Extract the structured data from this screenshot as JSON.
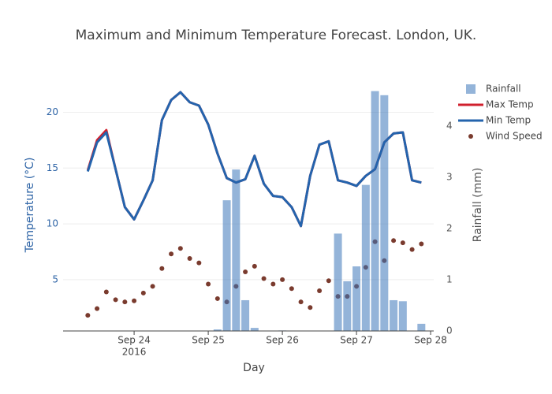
{
  "chart_data": {
    "type": "combo",
    "title": "Maximum and Minimum Temperature Forecast. London, UK.",
    "x_label": "Day",
    "y_label": "Temperature (°C)",
    "y2_label": "Rainfall (mm)",
    "x": [
      "2016-09-23 09:00",
      "2016-09-23 12:00",
      "2016-09-23 15:00",
      "2016-09-23 18:00",
      "2016-09-23 21:00",
      "2016-09-24 00:00",
      "2016-09-24 03:00",
      "2016-09-24 06:00",
      "2016-09-24 09:00",
      "2016-09-24 12:00",
      "2016-09-24 15:00",
      "2016-09-24 18:00",
      "2016-09-24 21:00",
      "2016-09-25 00:00",
      "2016-09-25 03:00",
      "2016-09-25 06:00",
      "2016-09-25 09:00",
      "2016-09-25 12:00",
      "2016-09-25 15:00",
      "2016-09-25 18:00",
      "2016-09-25 21:00",
      "2016-09-26 00:00",
      "2016-09-26 03:00",
      "2016-09-26 06:00",
      "2016-09-26 09:00",
      "2016-09-26 12:00",
      "2016-09-26 15:00",
      "2016-09-26 18:00",
      "2016-09-26 21:00",
      "2016-09-27 00:00",
      "2016-09-27 03:00",
      "2016-09-27 06:00",
      "2016-09-27 09:00",
      "2016-09-27 12:00",
      "2016-09-27 15:00",
      "2016-09-27 18:00",
      "2016-09-27 21:00"
    ],
    "series": [
      {
        "name": "Rainfall",
        "type": "bar",
        "axis": "y2",
        "color": "#3d77b9",
        "values": [
          0,
          0,
          0,
          0,
          0,
          0,
          0,
          0,
          0,
          0,
          0,
          0,
          0,
          0,
          0.03,
          2.55,
          3.15,
          0.6,
          0.06,
          0,
          0,
          0.01,
          0,
          0,
          0,
          0,
          0,
          1.9,
          0.97,
          1.26,
          2.85,
          4.68,
          4.6,
          0.6,
          0.58,
          0,
          0.14
        ]
      },
      {
        "name": "Max Temp",
        "type": "line",
        "color": "#d0202e",
        "values": [
          14.8,
          17.5,
          18.4,
          14.9,
          11.5,
          10.4,
          12.1,
          13.9,
          19.3,
          21.1,
          21.8,
          20.9,
          20.6,
          18.9,
          16.3,
          14.1,
          13.7,
          14.0,
          16.1,
          13.6,
          12.5,
          12.4,
          11.5,
          9.8,
          14.3,
          17.1,
          17.4,
          13.9,
          13.7,
          13.4,
          14.3,
          14.9,
          17.3,
          18.1,
          18.2,
          13.9,
          13.7
        ]
      },
      {
        "name": "Min Temp",
        "type": "line",
        "color": "#2464ad",
        "values": [
          14.7,
          17.3,
          18.2,
          14.9,
          11.5,
          10.4,
          12.1,
          13.9,
          19.3,
          21.1,
          21.8,
          20.9,
          20.6,
          18.9,
          16.3,
          14.1,
          13.7,
          14.0,
          16.1,
          13.6,
          12.5,
          12.4,
          11.5,
          9.8,
          14.3,
          17.1,
          17.4,
          13.9,
          13.7,
          13.4,
          14.3,
          14.9,
          17.3,
          18.1,
          18.2,
          13.9,
          13.7
        ]
      },
      {
        "name": "Wind Speed",
        "type": "scatter",
        "color": "#7a3b2e",
        "values": [
          1.8,
          2.4,
          3.9,
          3.2,
          3.0,
          3.1,
          3.8,
          4.4,
          6.0,
          7.3,
          7.8,
          6.9,
          6.5,
          4.6,
          3.3,
          3.0,
          4.4,
          5.7,
          6.2,
          5.1,
          4.6,
          5.0,
          4.2,
          3.0,
          2.5,
          4.0,
          4.9,
          3.5,
          3.5,
          4.4,
          6.1,
          8.4,
          6.7,
          8.5,
          8.3,
          7.7,
          8.2
        ]
      }
    ],
    "xlim": [
      "2016-09-23 01:00",
      "2016-09-28 01:00"
    ],
    "xticks": [
      {
        "value": "2016-09-24 00:00",
        "label": [
          "Sep 24",
          "2016"
        ]
      },
      {
        "value": "2016-09-25 00:00",
        "label": [
          "Sep 25"
        ]
      },
      {
        "value": "2016-09-26 00:00",
        "label": [
          "Sep 26"
        ]
      },
      {
        "value": "2016-09-27 00:00",
        "label": [
          "Sep 27"
        ]
      },
      {
        "value": "2016-09-28 00:00",
        "label": [
          "Sep 28"
        ]
      }
    ],
    "ylim": [
      0.4,
      23
    ],
    "yticks": [
      5,
      10,
      15,
      20
    ],
    "y2lim": [
      0,
      4.92
    ],
    "y2ticks": [
      0,
      1,
      2,
      3,
      4
    ],
    "grid": true,
    "legend": "right"
  }
}
